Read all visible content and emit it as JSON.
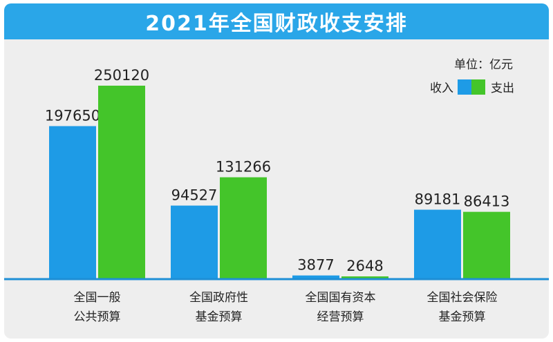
{
  "chart_data": {
    "type": "bar",
    "title": "2021年全国财政收支安排",
    "unit_label": "单位：亿元",
    "categories": [
      [
        "全国一般",
        "公共预算"
      ],
      [
        "全国政府性",
        "基金预算"
      ],
      [
        "全国国有资本",
        "经营预算"
      ],
      [
        "全国社会保险",
        "基金预算"
      ]
    ],
    "series": [
      {
        "name": "收入",
        "color": "#1e9be6",
        "values": [
          197650,
          94527,
          3877,
          89181
        ]
      },
      {
        "name": "支出",
        "color": "#44c52a",
        "values": [
          250120,
          131266,
          2648,
          86413
        ]
      }
    ],
    "ylim": [
      0,
      250120
    ],
    "grid": false,
    "legend_position": "top-right",
    "xlabel": "",
    "ylabel": ""
  }
}
